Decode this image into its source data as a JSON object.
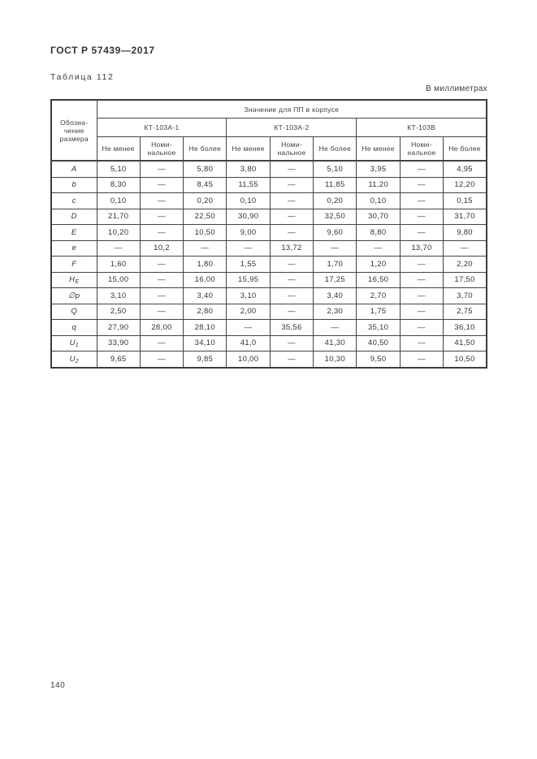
{
  "page": {
    "doc_number": "ГОСТ Р 57439—2017",
    "table_caption": "Таблица 112",
    "units_note": "В миллиметрах",
    "page_number": "140"
  },
  "table": {
    "corner_header": "Обозна-\nчение\nразмера",
    "span_header": "Значение для ПП в корпусе",
    "group_headers": [
      "КТ-103А-1",
      "КТ-103А-2",
      "КТ-103В"
    ],
    "sub_headers": [
      "Не менее",
      "Номи-\nнальное",
      "Не более"
    ],
    "rows": [
      {
        "label": "A",
        "sub": "",
        "cells": [
          "5,10",
          "—",
          "5,80",
          "3,80",
          "—",
          "5,10",
          "3,95",
          "—",
          "4,95"
        ]
      },
      {
        "label": "b",
        "sub": "",
        "cells": [
          "8,30",
          "—",
          "8,45",
          "11,55",
          "—",
          "11,85",
          "11,20",
          "—",
          "12,20"
        ]
      },
      {
        "label": "c",
        "sub": "",
        "cells": [
          "0,10",
          "—",
          "0,20",
          "0,10",
          "—",
          "0,20",
          "0,10",
          "—",
          "0,15"
        ]
      },
      {
        "label": "D",
        "sub": "",
        "cells": [
          "21,70",
          "—",
          "22,50",
          "30,90",
          "—",
          "32,50",
          "30,70",
          "—",
          "31,70"
        ]
      },
      {
        "label": "E",
        "sub": "",
        "cells": [
          "10,20",
          "—",
          "10,50",
          "9,00",
          "—",
          "9,60",
          "8,80",
          "—",
          "9,80"
        ]
      },
      {
        "label": "e",
        "sub": "",
        "cells": [
          "—",
          "10,2",
          "—",
          "—",
          "13,72",
          "—",
          "—",
          "13,70",
          "—"
        ]
      },
      {
        "label": "F",
        "sub": "",
        "cells": [
          "1,60",
          "—",
          "1,80",
          "1,55",
          "—",
          "1,70",
          "1,20",
          "—",
          "2,20"
        ]
      },
      {
        "label": "H",
        "sub": "E",
        "cells": [
          "15,00",
          "—",
          "16,00",
          "15,95",
          "—",
          "17,25",
          "16,50",
          "—",
          "17,50"
        ]
      },
      {
        "label": "∅p",
        "sub": "",
        "cells": [
          "3,10",
          "—",
          "3,40",
          "3,10",
          "—",
          "3,40",
          "2,70",
          "—",
          "3,70"
        ]
      },
      {
        "label": "Q",
        "sub": "",
        "cells": [
          "2,50",
          "—",
          "2,80",
          "2,00",
          "—",
          "2,30",
          "1,75",
          "—",
          "2,75"
        ]
      },
      {
        "label": "q",
        "sub": "",
        "cells": [
          "27,90",
          "28,00",
          "28,10",
          "—",
          "35,56",
          "—",
          "35,10",
          "—",
          "36,10"
        ]
      },
      {
        "label": "U",
        "sub": "1",
        "cells": [
          "33,90",
          "—",
          "34,10",
          "41,0",
          "—",
          "41,30",
          "40,50",
          "—",
          "41,50"
        ]
      },
      {
        "label": "U",
        "sub": "2",
        "cells": [
          "9,65",
          "—",
          "9,85",
          "10,00",
          "—",
          "10,30",
          "9,50",
          "—",
          "10,50"
        ]
      }
    ]
  }
}
